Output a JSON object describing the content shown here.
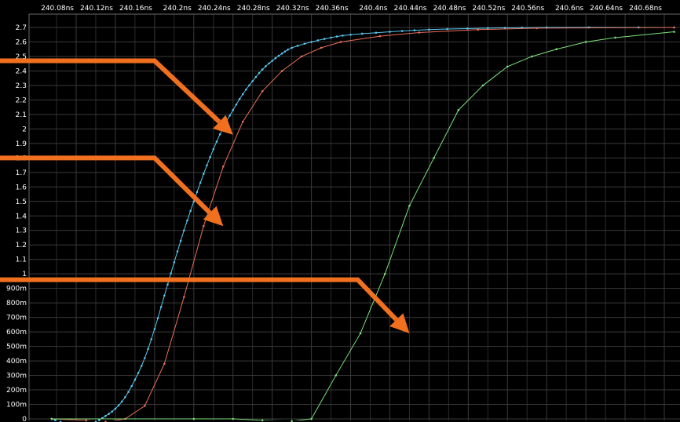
{
  "chart_data": {
    "type": "line",
    "title": "",
    "xlabel": "",
    "ylabel": "",
    "xlim": [
      240.055,
      240.69
    ],
    "ylim": [
      0,
      2.75
    ],
    "grid": true,
    "x_ticks": [
      240.08,
      240.12,
      240.16,
      240.2,
      240.24,
      240.28,
      240.32,
      240.36,
      240.4,
      240.44,
      240.48,
      240.52,
      240.56,
      240.6,
      240.64,
      240.68
    ],
    "x_tick_labels": [
      "240.08ns",
      "240.12ns",
      "240.16ns",
      "240.2ns",
      "240.24ns",
      "240.28ns",
      "240.32ns",
      "240.36ns",
      "240.4ns",
      "240.44ns",
      "240.48ns",
      "240.52ns",
      "240.56ns",
      "240.6ns",
      "240.64ns",
      "240.68ns"
    ],
    "y_ticks": [
      0,
      0.1,
      0.2,
      0.3,
      0.4,
      0.5,
      0.6,
      0.7,
      0.8,
      0.9,
      1.0,
      1.1,
      1.2,
      1.3,
      1.4,
      1.5,
      1.6,
      1.7,
      1.8,
      1.9,
      2.0,
      2.1,
      2.2,
      2.3,
      2.4,
      2.5,
      2.6,
      2.7
    ],
    "y_tick_labels": [
      "0",
      "100m",
      "200m",
      "300m",
      "400m",
      "500m",
      "600m",
      "700m",
      "800m",
      "900m",
      "1",
      "1.1",
      "1.2",
      "1.3",
      "1.4",
      "1.5",
      "1.6",
      "1.7",
      "1.8",
      "1.9",
      "2",
      "2.1",
      "2.2",
      "2.3",
      "2.4",
      "2.5",
      "2.6",
      "2.7"
    ],
    "series": [
      {
        "color": "#5bc8f0",
        "marker_density": "dense",
        "points": [
          [
            240.055,
            0.0
          ],
          [
            240.07,
            -0.03
          ],
          [
            240.09,
            -0.04
          ],
          [
            240.1,
            -0.02
          ],
          [
            240.11,
            0.02
          ],
          [
            240.12,
            0.07
          ],
          [
            240.13,
            0.15
          ],
          [
            240.14,
            0.27
          ],
          [
            240.15,
            0.42
          ],
          [
            240.16,
            0.62
          ],
          [
            240.17,
            0.85
          ],
          [
            240.18,
            1.08
          ],
          [
            240.19,
            1.3
          ],
          [
            240.2,
            1.5
          ],
          [
            240.21,
            1.69
          ],
          [
            240.22,
            1.86
          ],
          [
            240.23,
            2.01
          ],
          [
            240.24,
            2.13
          ],
          [
            240.25,
            2.24
          ],
          [
            240.26,
            2.33
          ],
          [
            240.27,
            2.41
          ],
          [
            240.28,
            2.47
          ],
          [
            240.29,
            2.52
          ],
          [
            240.3,
            2.56
          ],
          [
            240.32,
            2.6
          ],
          [
            240.34,
            2.63
          ],
          [
            240.36,
            2.65
          ],
          [
            240.4,
            2.67
          ],
          [
            240.44,
            2.685
          ],
          [
            240.5,
            2.695
          ],
          [
            240.56,
            2.7
          ],
          [
            240.69,
            2.7
          ]
        ]
      },
      {
        "color": "#e8705a",
        "marker_density": "sparse",
        "points": [
          [
            240.055,
            0.0
          ],
          [
            240.09,
            -0.01
          ],
          [
            240.11,
            -0.02
          ],
          [
            240.13,
            0.0
          ],
          [
            240.15,
            0.09
          ],
          [
            240.17,
            0.38
          ],
          [
            240.19,
            0.84
          ],
          [
            240.21,
            1.33
          ],
          [
            240.23,
            1.74
          ],
          [
            240.25,
            2.05
          ],
          [
            240.27,
            2.26
          ],
          [
            240.29,
            2.4
          ],
          [
            240.31,
            2.5
          ],
          [
            240.33,
            2.56
          ],
          [
            240.35,
            2.6
          ],
          [
            240.39,
            2.64
          ],
          [
            240.43,
            2.665
          ],
          [
            240.49,
            2.685
          ],
          [
            240.55,
            2.695
          ],
          [
            240.69,
            2.7
          ]
        ]
      },
      {
        "color": "#7ee07e",
        "marker_density": "sparse",
        "points": [
          [
            240.055,
            0.0
          ],
          [
            240.2,
            0.0
          ],
          [
            240.24,
            0.0
          ],
          [
            240.27,
            -0.01
          ],
          [
            240.3,
            -0.015
          ],
          [
            240.32,
            0.0
          ],
          [
            240.345,
            0.3
          ],
          [
            240.37,
            0.59
          ],
          [
            240.395,
            1.0
          ],
          [
            240.42,
            1.47
          ],
          [
            240.445,
            1.8
          ],
          [
            240.47,
            2.13
          ],
          [
            240.495,
            2.3
          ],
          [
            240.52,
            2.43
          ],
          [
            240.545,
            2.5
          ],
          [
            240.57,
            2.55
          ],
          [
            240.6,
            2.6
          ],
          [
            240.63,
            2.63
          ],
          [
            240.69,
            2.67
          ]
        ]
      }
    ],
    "annotations": {
      "arrow_color": "#f07020",
      "arrows": [
        {
          "from": [
            240.055,
            2.47
          ],
          "elbow": [
            240.16,
            2.47
          ],
          "to": [
            240.24,
            1.96
          ],
          "label": ""
        },
        {
          "from": [
            240.055,
            1.8
          ],
          "elbow": [
            240.16,
            1.8
          ],
          "to": [
            240.23,
            1.33
          ],
          "label": ""
        },
        {
          "from": [
            240.055,
            0.96
          ],
          "elbow": [
            240.36,
            0.96
          ],
          "to": [
            240.42,
            0.59
          ],
          "label": ""
        }
      ]
    }
  }
}
